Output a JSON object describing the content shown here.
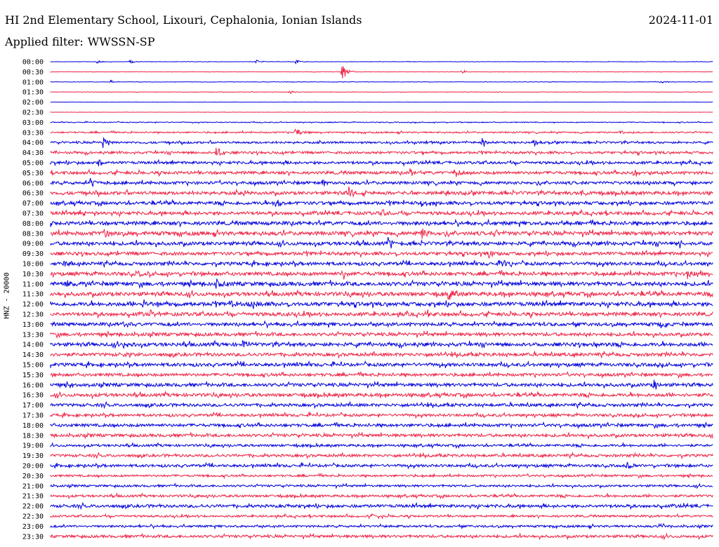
{
  "header": {
    "station": "HI 2nd Elementary School, Lixouri, Cephalonia, Ionian Islands",
    "date": "2024-11-01",
    "filter_label": "Applied filter:",
    "filter_value": "WWSSN-SP"
  },
  "chart_data": {
    "type": "line",
    "title": "HI 2nd Elementary School, Lixouri, Cephalonia, Ionian Islands",
    "ylabel": "HNZ - 20000",
    "xlabel": "",
    "colors": [
      "#0000dd",
      "#ee2244"
    ],
    "rows": [
      "00:00",
      "00:30",
      "01:00",
      "01:30",
      "02:00",
      "02:30",
      "03:00",
      "03:30",
      "04:00",
      "04:30",
      "05:00",
      "05:30",
      "06:00",
      "06:30",
      "07:00",
      "07:30",
      "08:00",
      "08:30",
      "09:00",
      "09:30",
      "10:00",
      "10:30",
      "11:00",
      "11:30",
      "12:00",
      "12:30",
      "13:00",
      "13:30",
      "14:00",
      "14:30",
      "15:00",
      "15:30",
      "16:00",
      "16:30",
      "17:00",
      "17:30",
      "18:00",
      "18:30",
      "19:00",
      "19:30",
      "20:00",
      "20:30",
      "21:00",
      "21:30",
      "22:00",
      "22:30",
      "23:00",
      "23:30"
    ],
    "noise_level": [
      0.3,
      0.3,
      0.3,
      0.3,
      0.2,
      0.2,
      0.6,
      1.0,
      1.4,
      1.6,
      1.8,
      2.0,
      2.0,
      2.2,
      2.2,
      2.2,
      2.4,
      2.6,
      2.4,
      2.2,
      2.2,
      2.4,
      2.6,
      2.6,
      2.6,
      2.4,
      2.2,
      2.2,
      2.4,
      2.2,
      2.2,
      2.0,
      2.2,
      2.2,
      2.0,
      1.8,
      2.0,
      2.0,
      1.6,
      1.8,
      1.8,
      1.4,
      1.4,
      1.6,
      2.0,
      1.4,
      1.4,
      1.8
    ],
    "events": [
      {
        "row": 0,
        "t": 0.07,
        "amp": 3
      },
      {
        "row": 0,
        "t": 0.12,
        "amp": 3
      },
      {
        "row": 0,
        "t": 0.31,
        "amp": 3
      },
      {
        "row": 0,
        "t": 0.37,
        "amp": 3
      },
      {
        "row": 1,
        "t": 0.44,
        "amp": 14
      },
      {
        "row": 1,
        "t": 0.62,
        "amp": 3
      },
      {
        "row": 2,
        "t": 0.09,
        "amp": 3
      },
      {
        "row": 2,
        "t": 0.92,
        "amp": 3
      },
      {
        "row": 3,
        "t": 0.36,
        "amp": 3
      },
      {
        "row": 7,
        "t": 0.37,
        "amp": 12
      },
      {
        "row": 7,
        "t": 0.86,
        "amp": 4
      },
      {
        "row": 8,
        "t": 0.08,
        "amp": 9
      },
      {
        "row": 8,
        "t": 0.65,
        "amp": 9
      },
      {
        "row": 8,
        "t": 0.73,
        "amp": 6
      },
      {
        "row": 9,
        "t": 0.25,
        "amp": 10
      },
      {
        "row": 10,
        "t": 0.07,
        "amp": 8
      },
      {
        "row": 11,
        "t": 0.54,
        "amp": 9
      },
      {
        "row": 11,
        "t": 0.61,
        "amp": 9
      },
      {
        "row": 11,
        "t": 0.88,
        "amp": 9
      },
      {
        "row": 12,
        "t": 0.06,
        "amp": 8
      },
      {
        "row": 12,
        "t": 0.41,
        "amp": 5
      },
      {
        "row": 13,
        "t": 0.29,
        "amp": 6
      },
      {
        "row": 13,
        "t": 0.45,
        "amp": 9
      },
      {
        "row": 13,
        "t": 0.8,
        "amp": 6
      },
      {
        "row": 14,
        "t": 0.34,
        "amp": 10
      },
      {
        "row": 14,
        "t": 0.56,
        "amp": 8
      },
      {
        "row": 15,
        "t": 0.05,
        "amp": 5
      },
      {
        "row": 15,
        "t": 0.5,
        "amp": 7
      },
      {
        "row": 16,
        "t": 0.78,
        "amp": 5
      },
      {
        "row": 17,
        "t": 0.08,
        "amp": 10
      },
      {
        "row": 17,
        "t": 0.56,
        "amp": 8
      },
      {
        "row": 17,
        "t": 0.67,
        "amp": 5
      },
      {
        "row": 18,
        "t": 0.51,
        "amp": 9
      },
      {
        "row": 18,
        "t": 0.95,
        "amp": 7
      },
      {
        "row": 19,
        "t": 0.66,
        "amp": 6
      },
      {
        "row": 20,
        "t": 0.02,
        "amp": 6
      },
      {
        "row": 20,
        "t": 0.68,
        "amp": 6
      },
      {
        "row": 21,
        "t": 0.13,
        "amp": 6
      },
      {
        "row": 21,
        "t": 0.44,
        "amp": 10
      },
      {
        "row": 21,
        "t": 0.96,
        "amp": 7
      },
      {
        "row": 22,
        "t": 0.02,
        "amp": 9
      },
      {
        "row": 22,
        "t": 0.25,
        "amp": 7
      },
      {
        "row": 23,
        "t": 0.6,
        "amp": 10
      },
      {
        "row": 24,
        "t": 0.14,
        "amp": 7
      },
      {
        "row": 24,
        "t": 0.27,
        "amp": 7
      },
      {
        "row": 24,
        "t": 0.3,
        "amp": 7
      },
      {
        "row": 25,
        "t": 0.15,
        "amp": 8
      },
      {
        "row": 25,
        "t": 0.56,
        "amp": 7
      },
      {
        "row": 26,
        "t": 0.11,
        "amp": 8
      },
      {
        "row": 26,
        "t": 0.92,
        "amp": 8
      },
      {
        "row": 28,
        "t": 0.11,
        "amp": 5
      },
      {
        "row": 28,
        "t": 0.29,
        "amp": 8
      },
      {
        "row": 28,
        "t": 0.82,
        "amp": 5
      },
      {
        "row": 29,
        "t": 0.11,
        "amp": 5
      },
      {
        "row": 32,
        "t": 0.91,
        "amp": 9
      },
      {
        "row": 32,
        "t": 0.03,
        "amp": 4
      },
      {
        "row": 40,
        "t": 0.87,
        "amp": 5
      },
      {
        "row": 44,
        "t": 0.35,
        "amp": 4
      },
      {
        "row": 45,
        "t": 0.48,
        "amp": 4
      },
      {
        "row": 46,
        "t": 0.92,
        "amp": 4
      }
    ]
  }
}
